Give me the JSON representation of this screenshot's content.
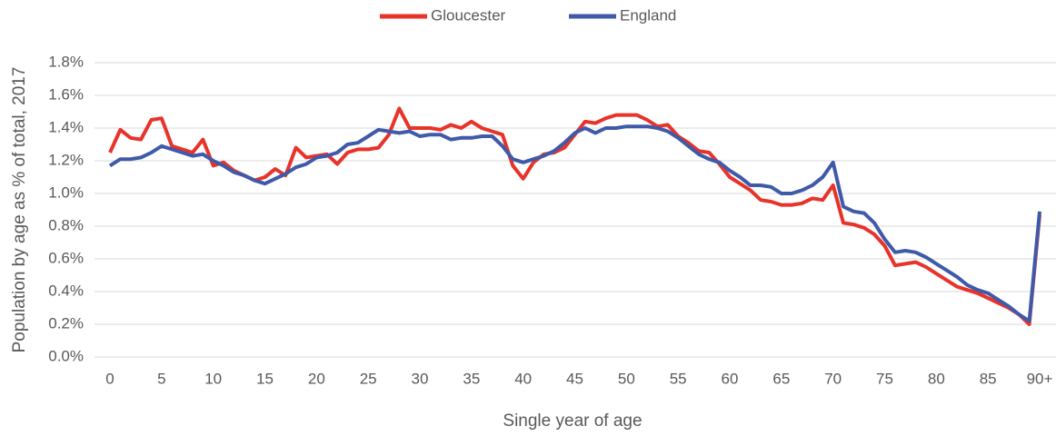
{
  "chart_data": {
    "type": "line",
    "x_label": "Single year of age",
    "y_label": "Population by age as % of total, 2017",
    "categories": [
      "0",
      null,
      null,
      null,
      null,
      "5",
      null,
      null,
      null,
      null,
      "10",
      null,
      null,
      null,
      null,
      "15",
      null,
      null,
      null,
      null,
      "20",
      null,
      null,
      null,
      null,
      "25",
      null,
      null,
      null,
      null,
      "30",
      null,
      null,
      null,
      null,
      "35",
      null,
      null,
      null,
      null,
      "40",
      null,
      null,
      null,
      null,
      "45",
      null,
      null,
      null,
      null,
      "50",
      null,
      null,
      null,
      null,
      "55",
      null,
      null,
      null,
      null,
      "60",
      null,
      null,
      null,
      null,
      "65",
      null,
      null,
      null,
      null,
      "70",
      null,
      null,
      null,
      null,
      "75",
      null,
      null,
      null,
      null,
      "80",
      null,
      null,
      null,
      null,
      "85",
      null,
      null,
      null,
      null,
      "90+"
    ],
    "series": [
      {
        "name": "Gloucester",
        "color": "#e8332a",
        "values": [
          1.25,
          1.39,
          1.34,
          1.33,
          1.45,
          1.46,
          1.29,
          1.27,
          1.25,
          1.33,
          1.17,
          1.19,
          1.14,
          1.11,
          1.08,
          1.1,
          1.15,
          1.11,
          1.28,
          1.22,
          1.23,
          1.24,
          1.18,
          1.25,
          1.27,
          1.27,
          1.28,
          1.36,
          1.52,
          1.4,
          1.4,
          1.4,
          1.39,
          1.42,
          1.4,
          1.44,
          1.4,
          1.38,
          1.36,
          1.17,
          1.09,
          1.19,
          1.24,
          1.25,
          1.28,
          1.36,
          1.44,
          1.43,
          1.46,
          1.48,
          1.48,
          1.48,
          1.45,
          1.41,
          1.42,
          1.35,
          1.31,
          1.26,
          1.25,
          1.18,
          1.1,
          1.06,
          1.02,
          0.96,
          0.95,
          0.93,
          0.93,
          0.94,
          0.97,
          0.96,
          1.05,
          0.82,
          0.81,
          0.79,
          0.75,
          0.68,
          0.56,
          0.57,
          0.58,
          0.55,
          0.51,
          0.47,
          0.43,
          0.41,
          0.39,
          0.36,
          0.33,
          0.3,
          0.26,
          0.2,
          0.87
        ]
      },
      {
        "name": "England",
        "color": "#3f5aa8",
        "values": [
          1.17,
          1.21,
          1.21,
          1.22,
          1.25,
          1.29,
          1.27,
          1.25,
          1.23,
          1.24,
          1.2,
          1.17,
          1.13,
          1.11,
          1.08,
          1.06,
          1.09,
          1.12,
          1.16,
          1.18,
          1.22,
          1.23,
          1.25,
          1.3,
          1.31,
          1.35,
          1.39,
          1.38,
          1.37,
          1.38,
          1.35,
          1.36,
          1.36,
          1.33,
          1.34,
          1.34,
          1.35,
          1.35,
          1.29,
          1.21,
          1.19,
          1.21,
          1.23,
          1.26,
          1.31,
          1.37,
          1.4,
          1.37,
          1.4,
          1.4,
          1.41,
          1.41,
          1.41,
          1.4,
          1.38,
          1.34,
          1.29,
          1.24,
          1.21,
          1.19,
          1.14,
          1.1,
          1.05,
          1.05,
          1.04,
          1.0,
          1.0,
          1.02,
          1.05,
          1.1,
          1.19,
          0.92,
          0.89,
          0.88,
          0.82,
          0.72,
          0.64,
          0.65,
          0.64,
          0.61,
          0.57,
          0.53,
          0.49,
          0.44,
          0.41,
          0.39,
          0.35,
          0.31,
          0.26,
          0.22,
          0.89
        ]
      }
    ],
    "ylim": [
      0,
      1.8
    ],
    "yticks": [
      {
        "value": 0,
        "label": "0.0%"
      },
      {
        "value": 0.2,
        "label": "0.2%"
      },
      {
        "value": 0.4,
        "label": "0.4%"
      },
      {
        "value": 0.6,
        "label": "0.6%"
      },
      {
        "value": 0.8,
        "label": "0.8%"
      },
      {
        "value": 1.0,
        "label": "1.0%"
      },
      {
        "value": 1.2,
        "label": "1.2%"
      },
      {
        "value": 1.4,
        "label": "1.4%"
      },
      {
        "value": 1.6,
        "label": "1.6%"
      },
      {
        "value": 1.8,
        "label": "1.8%"
      }
    ],
    "grid": true,
    "legend": "top"
  }
}
